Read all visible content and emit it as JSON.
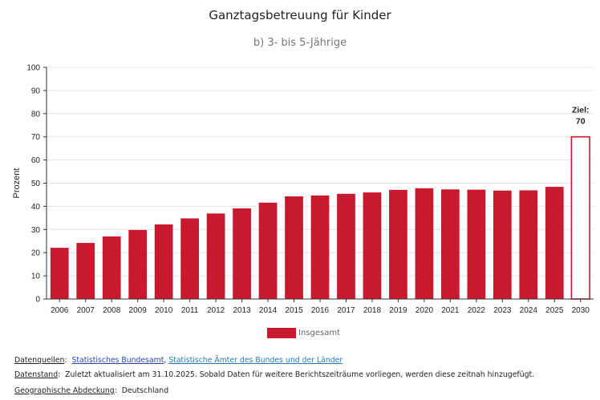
{
  "chart_data": {
    "type": "bar",
    "title": "Ganztagsbetreuung für Kinder",
    "subtitle": "b) 3- bis 5-Jährige",
    "ylabel": "Prozent",
    "ylim": [
      0,
      100
    ],
    "yticks": [
      0,
      10,
      20,
      30,
      40,
      50,
      60,
      70,
      80,
      90,
      100
    ],
    "categories": [
      "2006",
      "2007",
      "2008",
      "2009",
      "2010",
      "2011",
      "2012",
      "2013",
      "2014",
      "2015",
      "2016",
      "2017",
      "2018",
      "2019",
      "2020",
      "2021",
      "2022",
      "2023",
      "2024",
      "2025",
      "2030"
    ],
    "series": [
      {
        "name": "Insgesamt",
        "color": "#C8192E",
        "values": [
          22.1,
          24.2,
          27.0,
          29.8,
          32.2,
          34.8,
          36.9,
          39.1,
          41.6,
          44.3,
          44.7,
          45.4,
          46.0,
          47.1,
          47.8,
          47.3,
          47.2,
          46.8,
          46.9,
          48.4,
          null
        ]
      }
    ],
    "target": {
      "category": "2030",
      "value": 70,
      "label_line1": "Ziel:",
      "label_line2": "70",
      "color": "#C8192E"
    },
    "grid": true,
    "legend_position": "bottom"
  },
  "footer": {
    "sources_label": "Datenquellen",
    "source_1": "Statistisches Bundesamt",
    "source_sep": ", ",
    "source_2": "Statistische Ämter des Bundes und der Länder",
    "stand_label": "Datenstand",
    "stand_text": "Zuletzt aktualisiert am 31.10.2025. Sobald Daten für weitere Berichtszeiträume vorliegen, werden diese zeitnah hinzugefügt.",
    "geo_label": "Geographische Abdeckung",
    "geo_text": "Deutschland"
  }
}
